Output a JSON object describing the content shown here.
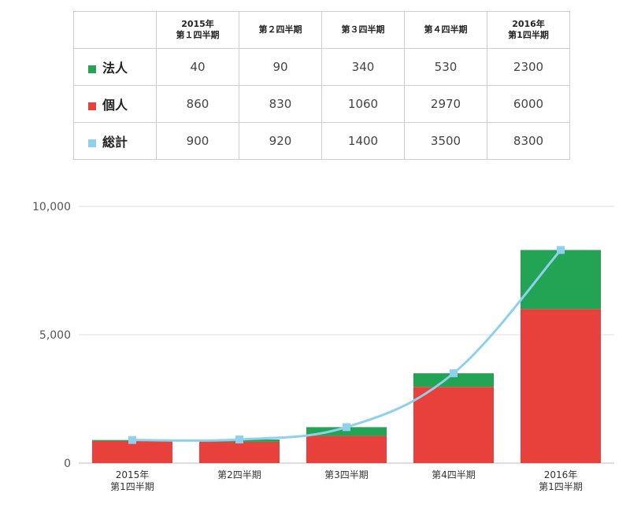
{
  "table": {
    "columns": [
      "2015年\n第１四半期",
      "第２四半期",
      "第３四半期",
      "第４四半期",
      "2016年\n第1四半期"
    ],
    "rows": [
      {
        "label": "法人",
        "color": "#23a455",
        "values": [
          "40",
          "90",
          "340",
          "530",
          "2300"
        ]
      },
      {
        "label": "個人",
        "color": "#e8403a",
        "values": [
          "860",
          "830",
          "1060",
          "2970",
          "6000"
        ]
      },
      {
        "label": "総計",
        "color": "#8fd0ee",
        "values": [
          "900",
          "920",
          "1400",
          "3500",
          "8300"
        ]
      }
    ]
  },
  "chart_data": {
    "type": "bar",
    "stacked": true,
    "categories": [
      "2015年\n第1四半期",
      "第2四半期",
      "第3四半期",
      "第4四半期",
      "2016年\n第1四半期"
    ],
    "series": [
      {
        "name": "個人",
        "kind": "bar",
        "color": "#e8403a",
        "values": [
          860,
          830,
          1060,
          2970,
          6000
        ]
      },
      {
        "name": "法人",
        "kind": "bar",
        "color": "#23a455",
        "values": [
          40,
          90,
          340,
          530,
          2300
        ]
      },
      {
        "name": "総計",
        "kind": "line",
        "color": "#8fd0ee",
        "values": [
          900,
          920,
          1400,
          3500,
          8300
        ]
      }
    ],
    "y_ticks": [
      "0",
      "5,000",
      "10,000"
    ],
    "ylim": [
      0,
      10000
    ],
    "grid": true
  }
}
